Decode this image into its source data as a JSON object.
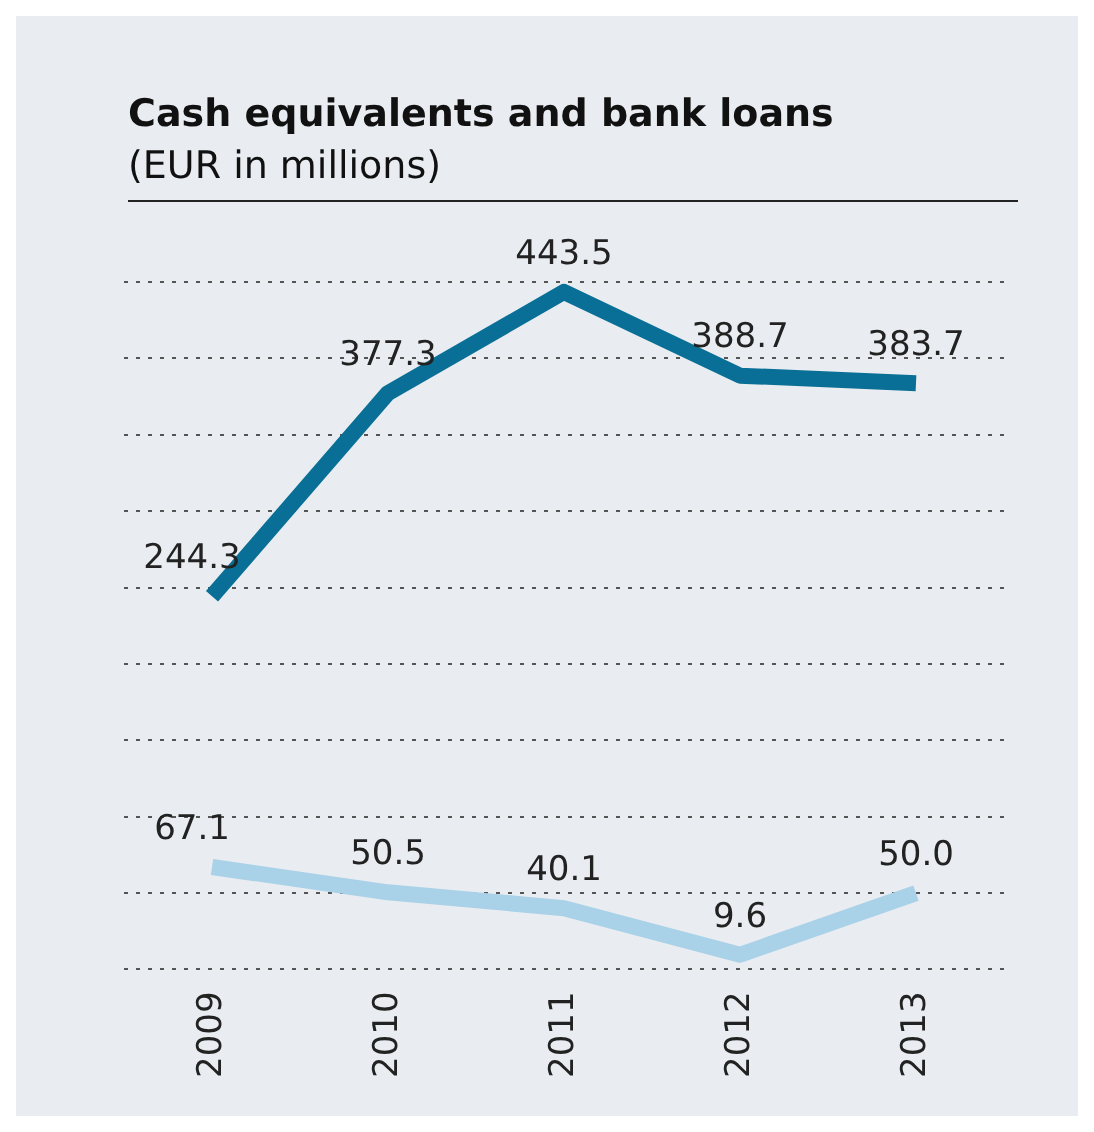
{
  "chart_data": {
    "type": "line",
    "title": "Cash equivalents and bank loans",
    "subtitle": "(EUR in millions)",
    "categories": [
      "2009",
      "2010",
      "2011",
      "2012",
      "2013"
    ],
    "series": [
      {
        "color": "#0a6f96",
        "values": [
          244.3,
          377.3,
          443.5,
          388.7,
          383.7
        ],
        "value_labels": [
          "244.3",
          "377.3",
          "443.5",
          "388.7",
          "383.7"
        ]
      },
      {
        "color": "#a9d1e8",
        "values": [
          67.1,
          50.5,
          40.1,
          9.6,
          50.0
        ],
        "value_labels": [
          "67.1",
          "50.5",
          "40.1",
          "9.6",
          "50.0"
        ]
      }
    ],
    "ylim": [
      0,
      450
    ],
    "yticks": [
      {
        "value": 0,
        "label": null
      },
      {
        "value": 50,
        "label": null
      },
      {
        "value": 100,
        "label": null
      },
      {
        "value": 150,
        "label": null
      },
      {
        "value": 200,
        "label": null
      },
      {
        "value": 250,
        "label": null
      },
      {
        "value": 300,
        "label": null
      },
      {
        "value": 350,
        "label": null
      },
      {
        "value": 400,
        "label": null
      },
      {
        "value": 450,
        "label": null
      }
    ],
    "grid": "y",
    "tick_labels": "x",
    "legend": false,
    "marker": "none",
    "line_style": "solid"
  }
}
